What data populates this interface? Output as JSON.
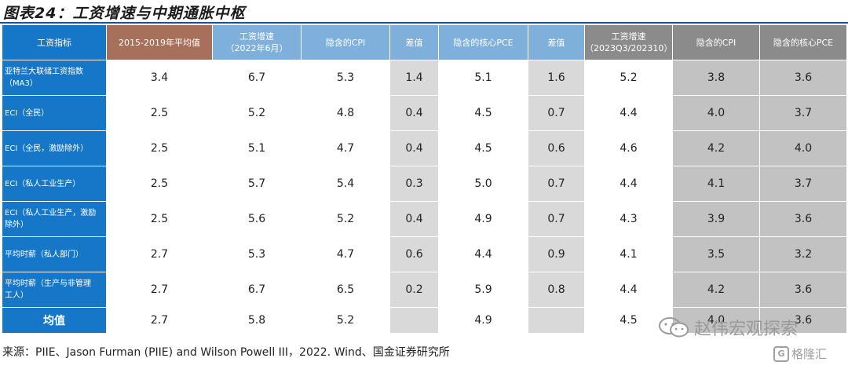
{
  "title": "图表24：工资增速与中期通胀中枢",
  "headers": [
    "工资指标",
    "2015-2019年平均值",
    "工资增速\n（2022年6月）",
    "隐含的CPI",
    "差值",
    "隐含的核心PCE",
    "差值",
    "工资增速\n（2023Q3/202310）",
    "隐含的CPI",
    "隐含的核心PCE"
  ],
  "rows": [
    {
      "label": "亚特兰大联储工资指数\n（MA3）",
      "values": [
        "3.4",
        "6.7",
        "5.3",
        "1.4",
        "5.1",
        "1.6",
        "5.2",
        "3.8",
        "3.6"
      ]
    },
    {
      "label": "ECI（全民）",
      "values": [
        "2.5",
        "5.2",
        "4.8",
        "0.4",
        "4.5",
        "0.7",
        "4.4",
        "4.0",
        "3.7"
      ]
    },
    {
      "label": "ECI（全民，激励除外）",
      "values": [
        "2.5",
        "5.1",
        "4.7",
        "0.4",
        "4.5",
        "0.6",
        "4.6",
        "4.2",
        "4.0"
      ]
    },
    {
      "label": "ECI（私人工业生产）",
      "values": [
        "2.5",
        "5.7",
        "5.4",
        "0.3",
        "5.0",
        "0.7",
        "4.4",
        "4.1",
        "3.7"
      ]
    },
    {
      "label": "ECI（私人工业生产，激励\n除外）",
      "values": [
        "2.5",
        "5.6",
        "5.2",
        "0.4",
        "4.9",
        "0.7",
        "4.3",
        "3.9",
        "3.6"
      ]
    },
    {
      "label": "平均时薪（私人部门）",
      "values": [
        "2.7",
        "5.3",
        "4.7",
        "0.6",
        "4.4",
        "0.9",
        "4.1",
        "3.5",
        "3.2"
      ]
    },
    {
      "label": "平均时薪（生产与非管理\n工人）",
      "values": [
        "2.7",
        "6.7",
        "6.5",
        "0.2",
        "5.9",
        "0.8",
        "4.4",
        "4.2",
        "3.6"
      ]
    }
  ],
  "average": {
    "label": "均值",
    "values": [
      "2.7",
      "5.8",
      "5.2",
      "",
      "4.9",
      "",
      "4.5",
      "4.0",
      "3.6"
    ]
  },
  "source": "来源：PIIE、Jason Furman (PIIE) and Wilson Powell III，2022. Wind、国金证券研究所",
  "watermark": "赵伟宏观探索",
  "watermark2": "格隆汇",
  "watermark2_icon": "G",
  "colors": {
    "header_blue": "#1677c9",
    "header_brown": "#a7705a",
    "header_light_blue": "#7fb0dc",
    "header_gray": "#8b8b8b",
    "cell_light_gray": "#d9d9d9",
    "cell_dark_gray": "#c2c2c2"
  }
}
